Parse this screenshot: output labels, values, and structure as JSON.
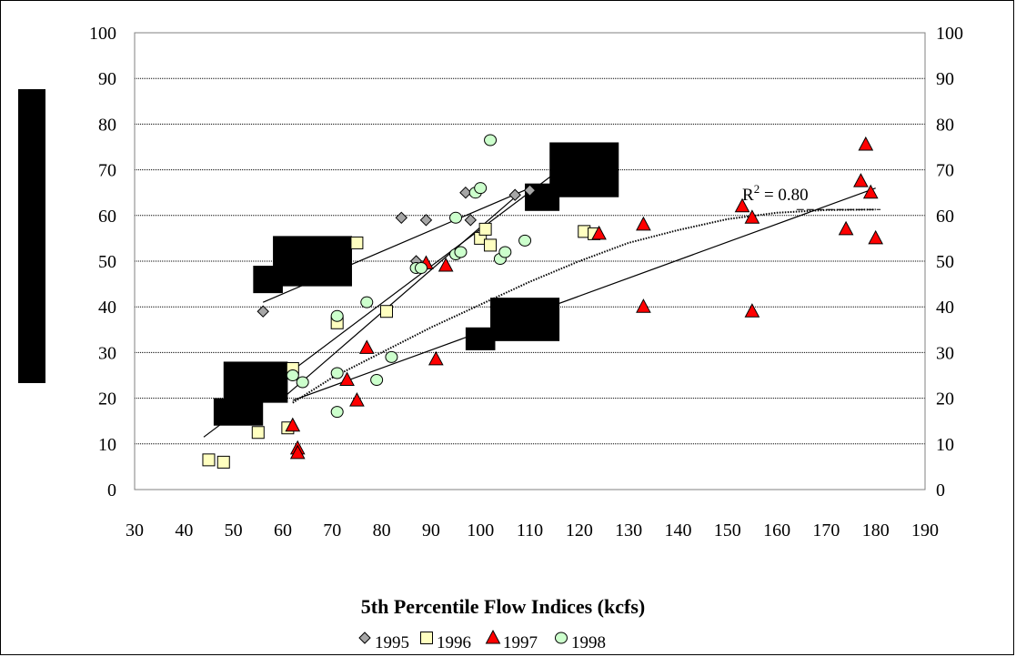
{
  "chart_data": {
    "type": "scatter",
    "title": "",
    "xlabel": "5th Percentile Flow Indices (kcfs)",
    "ylabel": "",
    "xlim": [
      30,
      190
    ],
    "ylim": [
      0,
      100
    ],
    "x_ticks": [
      30,
      40,
      50,
      60,
      70,
      80,
      90,
      100,
      110,
      120,
      130,
      140,
      150,
      160,
      170,
      180,
      190
    ],
    "y_ticks": [
      0,
      10,
      20,
      30,
      40,
      50,
      60,
      70,
      80,
      90,
      100
    ],
    "grid": "horizontal",
    "legend_position": "bottom-center",
    "annotation": {
      "text": "= 0.80",
      "prefix": "R",
      "superscript": "2",
      "x": 153,
      "y": 62
    },
    "series": [
      {
        "name": "1995",
        "marker": "diamond",
        "color": "#a6a6a6",
        "points": [
          [
            56,
            39
          ],
          [
            84,
            59.5
          ],
          [
            87,
            50
          ],
          [
            89,
            59
          ],
          [
            97,
            65
          ],
          [
            98,
            59
          ],
          [
            107,
            64.5
          ],
          [
            110,
            65.5
          ]
        ]
      },
      {
        "name": "1996",
        "marker": "square",
        "color": "#ffffc0",
        "points": [
          [
            45,
            6.5
          ],
          [
            48,
            6
          ],
          [
            55,
            12.5
          ],
          [
            61,
            13.5
          ],
          [
            62,
            26.5
          ],
          [
            71,
            36.5
          ],
          [
            75,
            54
          ],
          [
            81,
            39
          ],
          [
            100,
            55
          ],
          [
            101,
            57
          ],
          [
            102,
            53.5
          ],
          [
            121,
            56.5
          ],
          [
            123,
            56
          ]
        ]
      },
      {
        "name": "1997",
        "marker": "triangle",
        "color": "#ff0000",
        "points": [
          [
            62,
            14
          ],
          [
            63,
            9
          ],
          [
            63,
            8
          ],
          [
            73,
            24
          ],
          [
            75,
            19.5
          ],
          [
            77,
            31
          ],
          [
            89,
            49.5
          ],
          [
            91,
            28.5
          ],
          [
            93,
            49
          ],
          [
            124,
            56
          ],
          [
            133,
            58
          ],
          [
            133,
            40
          ],
          [
            153,
            62
          ],
          [
            155,
            39
          ],
          [
            155,
            59.5
          ],
          [
            174,
            57
          ],
          [
            177,
            67.5
          ],
          [
            178,
            75.5
          ],
          [
            179,
            65
          ],
          [
            180,
            55
          ]
        ]
      },
      {
        "name": "1998",
        "marker": "circle",
        "color": "#ccffcc",
        "points": [
          [
            62,
            25
          ],
          [
            64,
            23.5
          ],
          [
            71,
            17
          ],
          [
            71,
            25.5
          ],
          [
            71,
            38
          ],
          [
            77,
            41
          ],
          [
            79,
            24
          ],
          [
            82,
            29
          ],
          [
            87,
            48.5
          ],
          [
            88,
            48.5
          ],
          [
            95,
            51.5
          ],
          [
            95,
            59.5
          ],
          [
            96,
            52
          ],
          [
            99,
            65
          ],
          [
            100,
            66
          ],
          [
            102,
            76.5
          ],
          [
            104,
            50.5
          ],
          [
            105,
            52
          ],
          [
            109,
            54.5
          ]
        ]
      }
    ],
    "trendlines": [
      {
        "series": "1995",
        "style": "solid",
        "points": [
          [
            56,
            41
          ],
          [
            110,
            66
          ]
        ]
      },
      {
        "series": "1996",
        "style": "solid",
        "points": [
          [
            60,
            20
          ],
          [
            107,
            64
          ]
        ]
      },
      {
        "series": "1996",
        "style": "solid",
        "points": [
          [
            44,
            11.5
          ],
          [
            116,
            70
          ]
        ]
      },
      {
        "series": "1997",
        "style": "solid",
        "points": [
          [
            62,
            19.5
          ],
          [
            180,
            66
          ]
        ]
      },
      {
        "series": "1998",
        "style": "dotted",
        "points": [
          [
            62,
            19
          ],
          [
            70,
            24.5
          ],
          [
            80,
            30
          ],
          [
            90,
            35.5
          ],
          [
            100,
            40.5
          ],
          [
            110,
            45.5
          ],
          [
            120,
            50
          ],
          [
            130,
            54
          ],
          [
            140,
            56.8
          ],
          [
            150,
            59.2
          ],
          [
            160,
            60.6
          ],
          [
            170,
            61.2
          ],
          [
            180,
            61.3
          ]
        ]
      }
    ],
    "redactions": [
      {
        "x": [
          46,
          56
        ],
        "y": [
          14,
          20
        ]
      },
      {
        "x": [
          48,
          61
        ],
        "y": [
          19,
          28
        ]
      },
      {
        "x": [
          54,
          60
        ],
        "y": [
          43,
          49
        ]
      },
      {
        "x": [
          58,
          74
        ],
        "y": [
          44.5,
          55.5
        ]
      },
      {
        "x": [
          109,
          116
        ],
        "y": [
          61,
          67
        ]
      },
      {
        "x": [
          114,
          128
        ],
        "y": [
          64,
          76
        ]
      },
      {
        "x": [
          97,
          103
        ],
        "y": [
          30.5,
          35.5
        ]
      },
      {
        "x": [
          102,
          116
        ],
        "y": [
          32.5,
          42
        ]
      }
    ]
  }
}
